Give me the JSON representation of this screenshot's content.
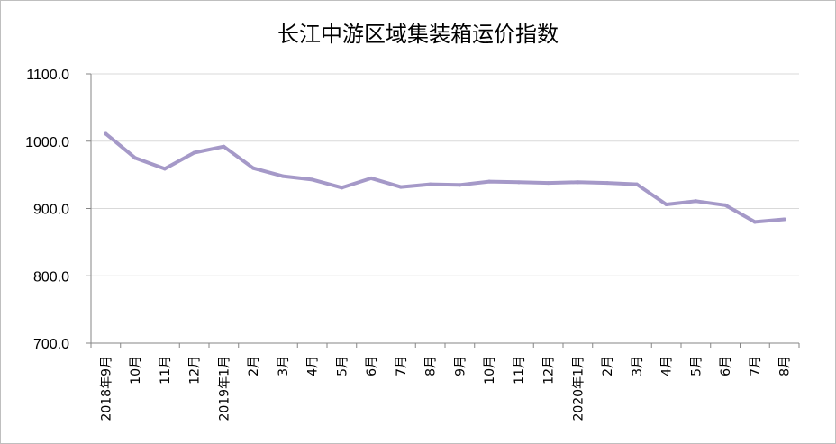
{
  "chart_data": {
    "type": "line",
    "title": "长江中游区域集装箱运价指数",
    "xlabel": "",
    "ylabel": "",
    "ylim": [
      700,
      1100
    ],
    "yticks": [
      "1100.0",
      "1000.0",
      "900.0",
      "800.0",
      "700.0"
    ],
    "grid": true,
    "legend": "none",
    "line_color": "#a599c8",
    "categories": [
      "2018年9月",
      "10月",
      "11月",
      "12月",
      "2019年1月",
      "2月",
      "3月",
      "4月",
      "5月",
      "6月",
      "7月",
      "8月",
      "9月",
      "10月",
      "11月",
      "12月",
      "2020年1月",
      "2月",
      "3月",
      "4月",
      "5月",
      "6月",
      "7月",
      "8月"
    ],
    "values": [
      1011,
      975,
      959,
      983,
      992,
      960,
      948,
      943,
      931,
      945,
      932,
      936,
      935,
      940,
      939,
      938,
      939,
      938,
      936,
      906,
      911,
      905,
      880,
      884
    ]
  }
}
